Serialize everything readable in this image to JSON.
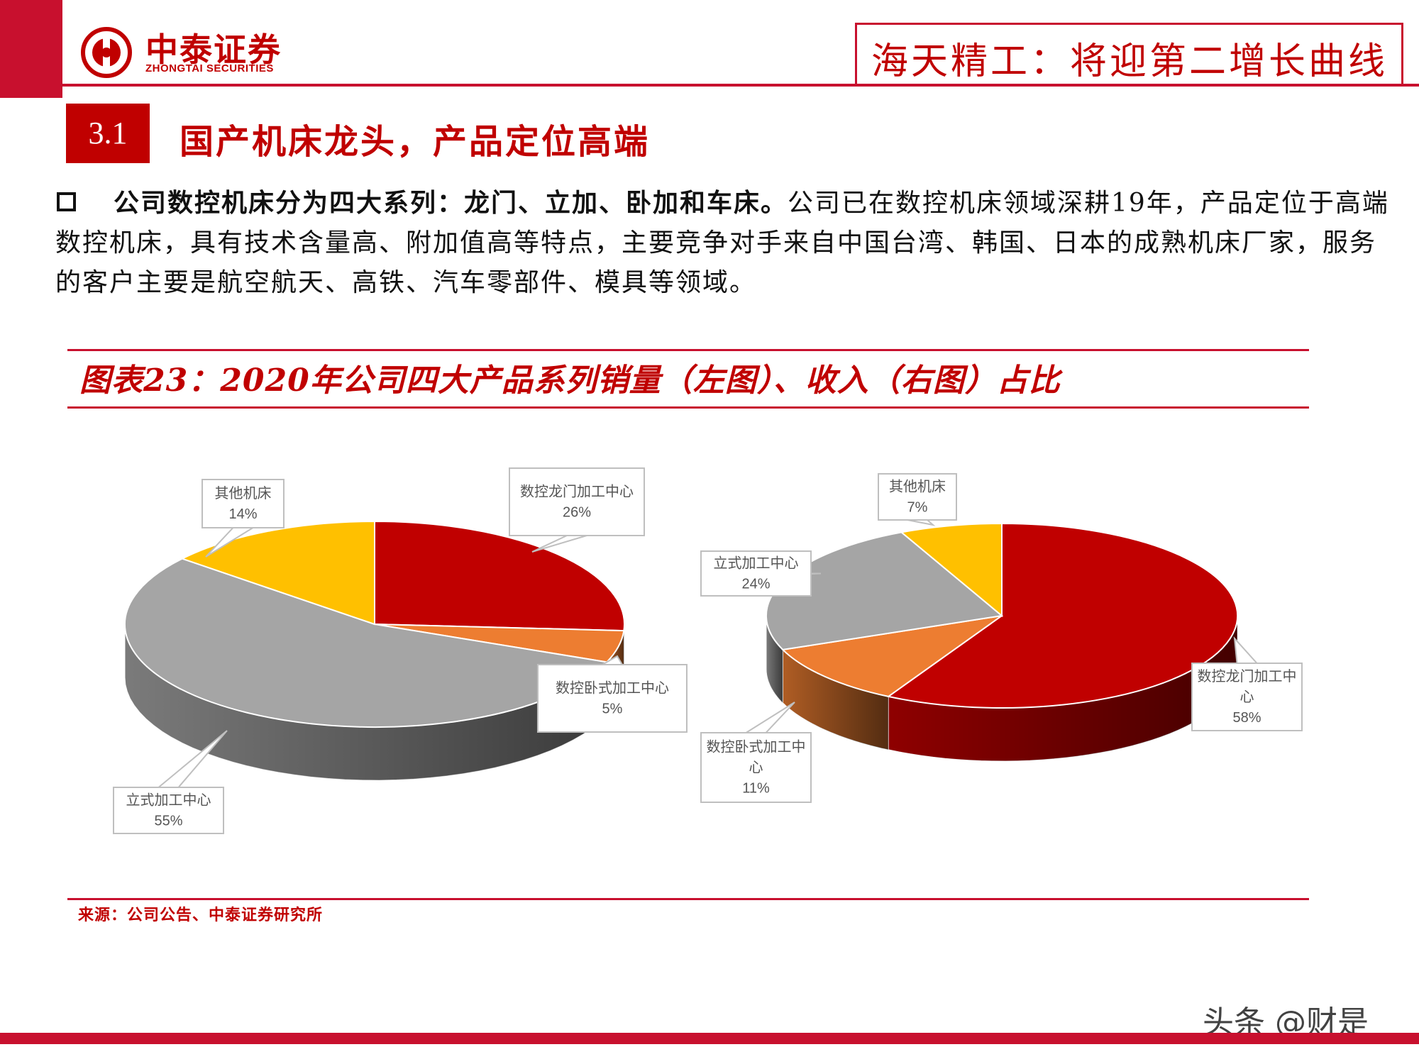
{
  "header": {
    "brand_cn": "中泰证券",
    "brand_en": "ZHONGTAI SECURITIES",
    "title": "海天精工：将迎第二增长曲线"
  },
  "section": {
    "number": "3.1",
    "title": "国产机床龙头，产品定位高端"
  },
  "paragraph": {
    "bold": "公司数控机床分为四大系列：龙门、立加、卧加和车床。",
    "rest": "公司已在数控机床领域深耕19年，产品定位于高端数控机床，具有技术含量高、附加值高等特点，主要竞争对手来自中国台湾、韩国、日本的成熟机床厂家，服务的客户主要是航空航天、高铁、汽车零部件、模具等领域。"
  },
  "figure": {
    "title": "图表23：2020年公司四大产品系列销量（左图）、收入（右图）占比",
    "source": "来源：公司公告、中泰证券研究所"
  },
  "watermark": "头条 @财是",
  "colors": {
    "brand_red": "#c8102e",
    "gantry": "#c00000",
    "horizontal": "#ed7d31",
    "vertical": "#a5a5a5",
    "other": "#ffc000"
  },
  "chart_data": [
    {
      "type": "pie",
      "subtitle": "销量（左图）",
      "slices": [
        {
          "name": "数控龙门加工中心",
          "value": 26,
          "label": "26%",
          "color": "#c00000"
        },
        {
          "name": "数控卧式加工中心",
          "value": 5,
          "label": "5%",
          "color": "#ed7d31"
        },
        {
          "name": "立式加工中心",
          "value": 55,
          "label": "55%",
          "color": "#a5a5a5"
        },
        {
          "name": "其他机床",
          "value": 14,
          "label": "14%",
          "color": "#ffc000"
        }
      ]
    },
    {
      "type": "pie",
      "subtitle": "收入（右图）",
      "slices": [
        {
          "name": "数控龙门加工中心",
          "value": 58,
          "label": "58%",
          "color": "#c00000"
        },
        {
          "name": "数控卧式加工中心",
          "value": 11,
          "label": "11%",
          "color": "#ed7d31"
        },
        {
          "name": "立式加工中心",
          "value": 24,
          "label": "24%",
          "color": "#a5a5a5"
        },
        {
          "name": "其他机床",
          "value": 7,
          "label": "7%",
          "color": "#ffc000"
        }
      ]
    }
  ]
}
